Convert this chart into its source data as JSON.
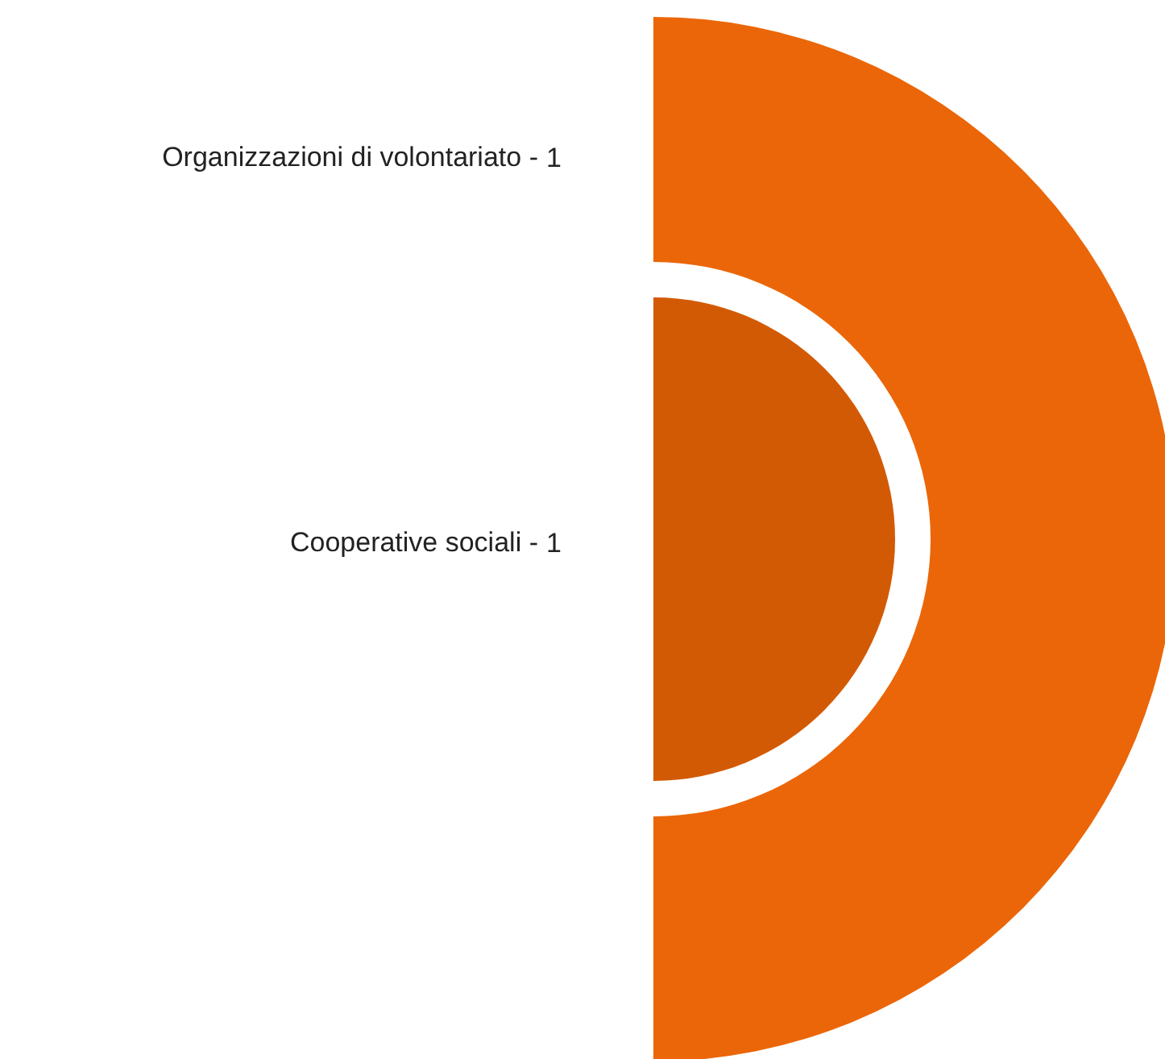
{
  "chart_data": {
    "type": "other",
    "categories": [
      "Organizzazioni di volontariato -",
      "Cooperative sociali -"
    ],
    "values": [
      1,
      1
    ],
    "colors": [
      "#eb6608",
      "#d35a04"
    ],
    "data_labels": true
  }
}
